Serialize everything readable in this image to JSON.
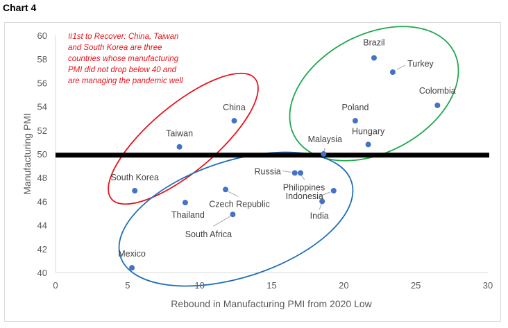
{
  "page_label": "Chart 4",
  "chart_data": {
    "type": "scatter",
    "title": "",
    "xlabel": "Rebound in Manufacturing PMI from 2020 Low",
    "ylabel": "Manufacturing PMI",
    "xlim": [
      0,
      30
    ],
    "ylim": [
      40,
      60
    ],
    "xticks": [
      "0",
      "5",
      "10",
      "15",
      "20",
      "25",
      "30"
    ],
    "yticks": [
      "40",
      "42",
      "44",
      "46",
      "48",
      "50",
      "52",
      "54",
      "56",
      "58",
      "60"
    ],
    "grid": false,
    "reference_line": {
      "y": 49.9,
      "color": "#000000"
    },
    "marker_color": "#4472c4",
    "points": [
      {
        "name": "Brazil",
        "x": 22.1,
        "y": 58.1
      },
      {
        "name": "Turkey",
        "x": 23.4,
        "y": 56.9
      },
      {
        "name": "Colombia",
        "x": 26.5,
        "y": 54.1
      },
      {
        "name": "Poland",
        "x": 20.8,
        "y": 52.8
      },
      {
        "name": "Hungary",
        "x": 21.7,
        "y": 50.8
      },
      {
        "name": "Malaysia",
        "x": 18.6,
        "y": 50.0
      },
      {
        "name": "China",
        "x": 12.4,
        "y": 52.8
      },
      {
        "name": "Taiwan",
        "x": 8.6,
        "y": 50.6
      },
      {
        "name": "South Korea",
        "x": 5.5,
        "y": 46.9
      },
      {
        "name": "Russia",
        "x": 16.6,
        "y": 48.4
      },
      {
        "name": "Philippines",
        "x": 17.0,
        "y": 48.4
      },
      {
        "name": "Indonesia",
        "x": 19.3,
        "y": 46.9
      },
      {
        "name": "India",
        "x": 18.5,
        "y": 46.0
      },
      {
        "name": "Czech Republic",
        "x": 11.8,
        "y": 47.0
      },
      {
        "name": "Thailand",
        "x": 9.0,
        "y": 45.9
      },
      {
        "name": "South Africa",
        "x": 12.3,
        "y": 44.9
      },
      {
        "name": "Mexico",
        "x": 5.3,
        "y": 40.4
      }
    ],
    "annotation": [
      "#1st to Recover: China, Taiwan",
      "and South Korea are three",
      "countries whose manufacturing",
      "PMI did not drop below 40 and",
      "are managing the pandemic well"
    ],
    "groups": [
      {
        "name": "recovered",
        "color": "#e8141c"
      },
      {
        "name": "high-rebound",
        "color": "#1ea84c"
      },
      {
        "name": "below-50",
        "color": "#1f6fb8"
      }
    ]
  }
}
